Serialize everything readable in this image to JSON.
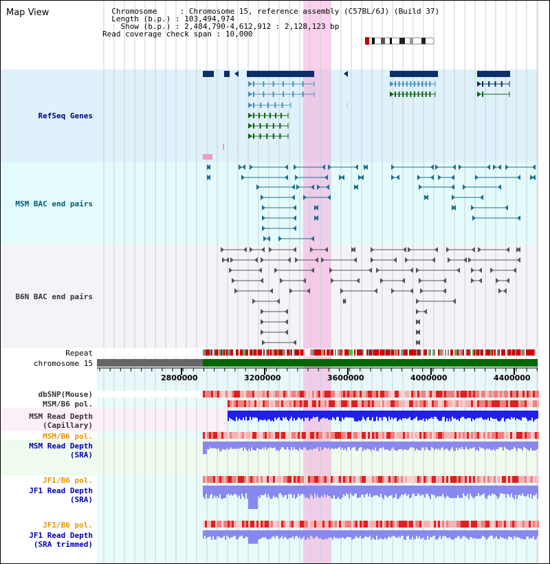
{
  "title": "Map View",
  "info": {
    "chromosome_key": "Chromosome",
    "chromosome_value": "Chromosome 15, reference assembly (C57BL/6J) (Build 37)",
    "length_key": "Length (b.p.)",
    "length_value": "103,494,974",
    "show_key": "Show (b.p.)",
    "show_value": "2,484,790-4,612,912 : 2,128,123 bp",
    "coverage_key": "Read coverage check span",
    "coverage_value": "10,000"
  },
  "tracks": {
    "refseq": "RefSeq Genes",
    "msm_bac": "MSM BAC end pairs",
    "b6n_bac": "B6N BAC end pairs",
    "repeat": "Repeat",
    "chromosome": "chromosome 15",
    "dbsnp": "dbSNP(Mouse)",
    "msm_b6_pol_1": "MSM/B6 pol.",
    "msm_read_depth_cap_1": "MSM Read Depth",
    "msm_read_depth_cap_2": "(Capillary)",
    "msm_b6_pol_2": "MSM/B6 pol.",
    "msm_read_depth_sra_1": "MSM Read Depth",
    "msm_read_depth_sra_2": "(SRA)",
    "jf1_b6_pol_1": "JF1/B6 pol.",
    "jf1_read_depth_sra_1": "JF1 Read Depth",
    "jf1_read_depth_sra_2": "(SRA)",
    "jf1_b6_pol_2": "JF1/B6 pol.",
    "jf1_read_depth_trim_1": "JF1 Read Depth",
    "jf1_read_depth_trim_2": "(SRA trimmed)"
  },
  "axis_ticks": [
    "2800000",
    "3200000",
    "3600000",
    "4000000",
    "4400000"
  ],
  "colors": {
    "refseq_bg": "#dff2fb",
    "msm_bg": "#e4fbfb",
    "b6n_bg": "#f4f4f8",
    "highlight": "#f5aadc",
    "gene_dark": "#0b2f66",
    "gene_mid": "#4a90b8",
    "gene_green": "#116611",
    "msm_feature": "#1f6f8f",
    "b6n_feature": "#555555",
    "chromosome_grey": "#666666",
    "chromosome_green": "#006600",
    "label_navy": "#000080",
    "label_orange": "#e69500",
    "label_blue": "#0000b0",
    "depth_blue": "#2020ee",
    "depth_light": "#8888ee"
  }
}
